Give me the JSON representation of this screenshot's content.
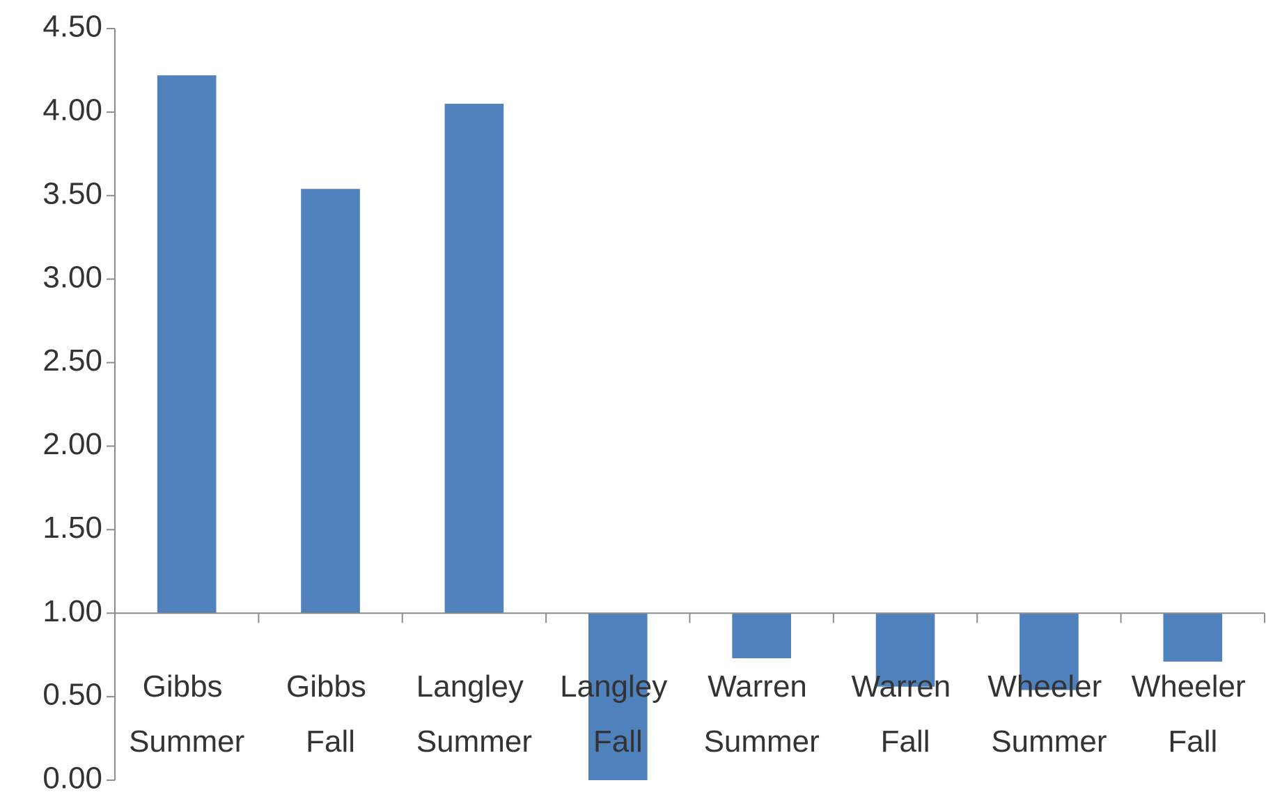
{
  "chart_data": {
    "type": "bar",
    "categories": [
      "Gibbs Summer",
      "Gibbs Fall",
      "Langley Summer",
      "Langley Fall",
      "Warren Summer",
      "Warren Fall",
      "Wheeler Summer",
      "Wheeler Fall"
    ],
    "values": [
      4.22,
      3.54,
      4.05,
      0.0,
      0.73,
      0.56,
      0.54,
      0.71
    ],
    "color": "#4f81bd",
    "baseline": 1,
    "ylim": [
      0,
      4.5
    ],
    "yticks": [
      {
        "value": 0,
        "label": "0.00"
      },
      {
        "value": 0.5,
        "label": "0.50"
      },
      {
        "value": 1,
        "label": "1.00"
      },
      {
        "value": 1.5,
        "label": "1.50"
      },
      {
        "value": 2,
        "label": "2.00"
      },
      {
        "value": 2.5,
        "label": "2.50"
      },
      {
        "value": 3,
        "label": "3.00"
      },
      {
        "value": 3.5,
        "label": "3.50"
      },
      {
        "value": 4,
        "label": "4.00"
      },
      {
        "value": 4.5,
        "label": "4.50"
      }
    ],
    "grid": false
  }
}
